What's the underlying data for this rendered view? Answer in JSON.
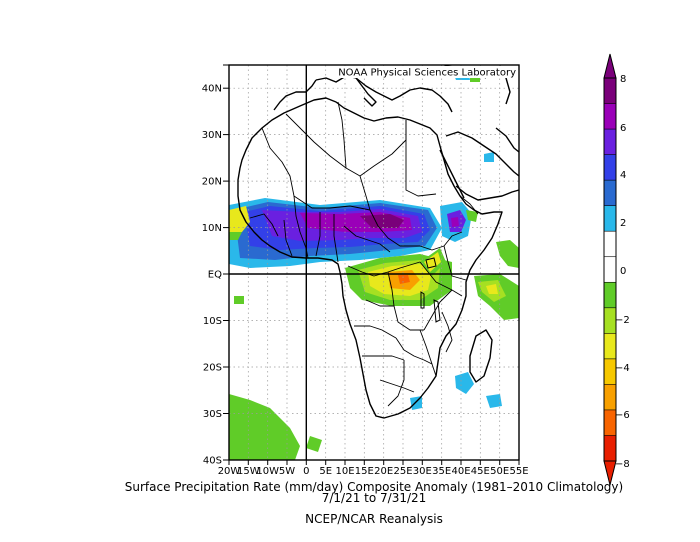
{
  "credit": "NOAA Physical Sciences Laboratory",
  "caption": {
    "line1": "Surface Precipitation Rate (mm/day) Composite Anomaly (1981–2010 Climatology)",
    "line2": "7/1/21  to 7/31/21",
    "line3": "NCEP/NCAR Reanalysis"
  },
  "map": {
    "lon_range": [
      -20,
      55
    ],
    "lat_range": [
      -40,
      45
    ],
    "x_ticks": [
      "20W",
      "15W",
      "10W",
      "5W",
      "0",
      "5E",
      "10E",
      "15E",
      "20E",
      "25E",
      "30E",
      "35E",
      "40E",
      "45E",
      "50E",
      "55E"
    ],
    "y_ticks": [
      "40N",
      "30N",
      "20N",
      "10N",
      "EQ",
      "10S",
      "20S",
      "30S",
      "40S"
    ],
    "gridlines": "dotted",
    "reference_lines": [
      "Equator",
      "Prime Meridian"
    ]
  },
  "colorbar": {
    "ticks": [
      "8",
      "6",
      "4",
      "2",
      "0",
      "−2",
      "−4",
      "−6",
      "−8"
    ],
    "colors": [
      "#7a007a",
      "#9a00b8",
      "#6a20e0",
      "#3340e8",
      "#2a6ad0",
      "#2ab8ea",
      "#ffffff",
      "#ffffff",
      "#60cc28",
      "#a6e022",
      "#e8e81c",
      "#f6c800",
      "#f8a000",
      "#f86400",
      "#e81e00"
    ]
  }
}
